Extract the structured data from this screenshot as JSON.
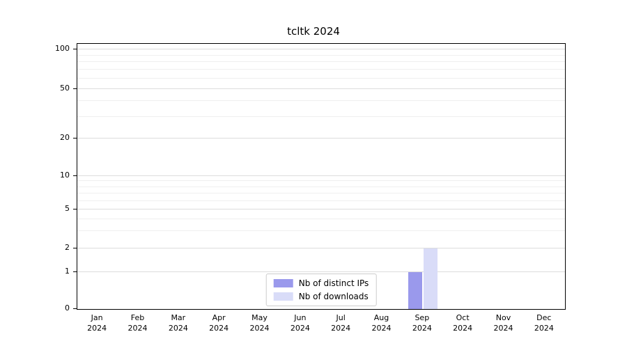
{
  "title": "tcltk 2024",
  "chart_data": {
    "type": "bar",
    "title": "tcltk 2024",
    "categories": [
      {
        "label": "Jan",
        "sub": "2024"
      },
      {
        "label": "Feb",
        "sub": "2024"
      },
      {
        "label": "Mar",
        "sub": "2024"
      },
      {
        "label": "Apr",
        "sub": "2024"
      },
      {
        "label": "May",
        "sub": "2024"
      },
      {
        "label": "Jun",
        "sub": "2024"
      },
      {
        "label": "Jul",
        "sub": "2024"
      },
      {
        "label": "Aug",
        "sub": "2024"
      },
      {
        "label": "Sep",
        "sub": "2024"
      },
      {
        "label": "Oct",
        "sub": "2024"
      },
      {
        "label": "Nov",
        "sub": "2024"
      },
      {
        "label": "Dec",
        "sub": "2024"
      }
    ],
    "series": [
      {
        "name": "Nb of distinct IPs",
        "color": "#9a99ec",
        "values": [
          0,
          0,
          0,
          0,
          0,
          0,
          0,
          0,
          1,
          0,
          0,
          0
        ]
      },
      {
        "name": "Nb of downloads",
        "color": "#d9dcf8",
        "values": [
          0,
          0,
          0,
          0,
          0,
          0,
          0,
          0,
          2,
          0,
          0,
          0
        ]
      }
    ],
    "xlabel": "",
    "ylabel": "",
    "yticks": [
      0,
      1,
      2,
      5,
      10,
      20,
      50,
      100
    ],
    "ylim": [
      0,
      110
    ],
    "yscale": "log-like",
    "grid": "horizontal",
    "legend_position": "inside-bottom-center"
  }
}
